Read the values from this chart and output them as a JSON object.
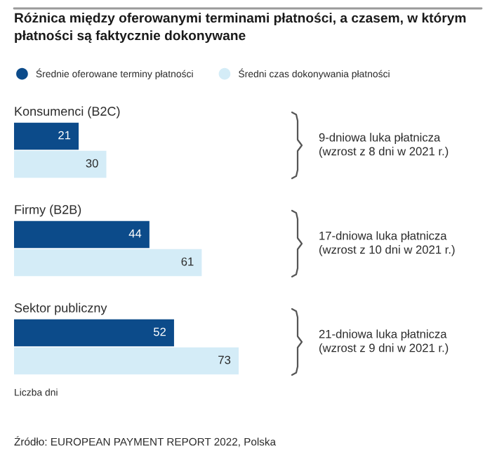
{
  "chart_data": {
    "type": "bar",
    "orientation": "horizontal",
    "title": "Różnica między oferowanymi terminami płatności, a czasem, w którym płatności są faktycznie dokonywane",
    "xlabel": "Liczba dni",
    "categories": [
      "Konsumenci (B2C)",
      "Firmy (B2B)",
      "Sektor publiczny"
    ],
    "series": [
      {
        "name": "Średnie oferowane terminy płatności",
        "color": "#0c4b8a",
        "values": [
          21,
          44,
          52
        ]
      },
      {
        "name": "Średni czas dokonywania płatności",
        "color": "#d4ecf7",
        "values": [
          30,
          61,
          73
        ]
      }
    ],
    "tick_labels": "y",
    "data_labels": true,
    "legend": "top",
    "annotations": [
      "9-dniowa luka płatnicza\n(wzrost z 8 dni w 2021 r.)",
      "17-dniowa luka płatnicza\n(wzrost z 10 dni w 2021 r.)",
      "21-dniowa luka płatnicza\n(wzrost z 9 dni w 2021 r.)",
      "Źródło: EUROPEAN PAYMENT REPORT 2022, Polska"
    ]
  }
}
